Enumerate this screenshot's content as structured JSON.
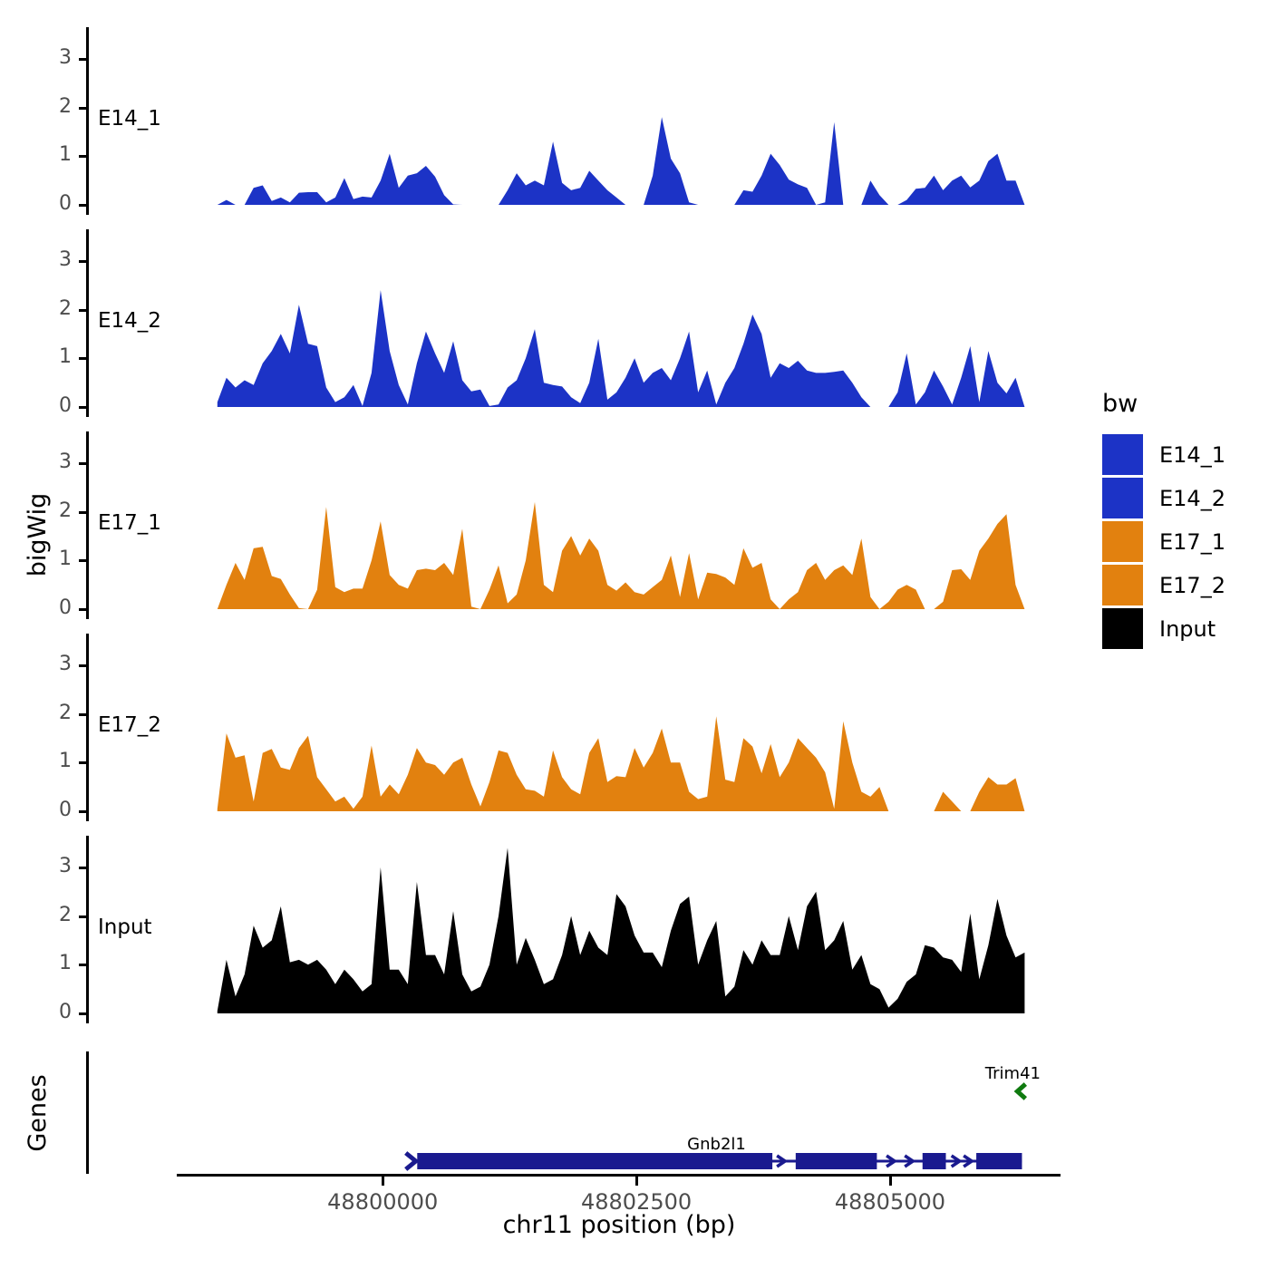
{
  "figure": {
    "ylab_left": "bigWig",
    "ylab_genes": "Genes",
    "xlab": "chr11 position (bp)"
  },
  "legend": {
    "title": "bw",
    "items": [
      {
        "label": "E14_1",
        "color": "#1c33c6"
      },
      {
        "label": "E14_2",
        "color": "#1c33c6"
      },
      {
        "label": "E17_1",
        "color": "#e2810f"
      },
      {
        "label": "E17_2",
        "color": "#e2810f"
      },
      {
        "label": "Input",
        "color": "#000000"
      }
    ]
  },
  "chart_data": {
    "type": "area",
    "title": "",
    "xlabel": "chr11 position (bp)",
    "ylabel": "bigWig",
    "xlim": [
      48797970,
      48806680
    ],
    "ylim": [
      0,
      3.65
    ],
    "yticks": [
      0,
      1,
      2,
      3
    ],
    "xticks": [
      48800000,
      48802500,
      48805000
    ],
    "xtick_labels": [
      "48800000",
      "48802500",
      "48805000"
    ],
    "x_start": 48798370,
    "x_step": 89.4,
    "tracks": [
      {
        "name": "E14_1",
        "color": "#1c33c6",
        "values": [
          0,
          0.1,
          0,
          0,
          0.35,
          0.4,
          0.08,
          0.15,
          0.05,
          0.25,
          0.26,
          0.26,
          0.05,
          0.15,
          0.55,
          0.12,
          0.17,
          0.15,
          0.5,
          1.05,
          0.35,
          0.6,
          0.65,
          0.8,
          0.58,
          0.2,
          0.01,
          0,
          0,
          0,
          0,
          0,
          0.3,
          0.65,
          0.4,
          0.5,
          0.4,
          1.3,
          0.45,
          0.3,
          0.35,
          0.7,
          0.5,
          0.3,
          0.15,
          0,
          0,
          0,
          0.6,
          1.8,
          0.95,
          0.65,
          0.05,
          0,
          0,
          0,
          0,
          0,
          0.3,
          0.27,
          0.6,
          1.05,
          0.82,
          0.52,
          0.42,
          0.35,
          0,
          0.05,
          1.7,
          0,
          0,
          0,
          0.5,
          0.2,
          0,
          0,
          0.1,
          0.33,
          0.35,
          0.6,
          0.3,
          0.5,
          0.6,
          0.36,
          0.5,
          0.9,
          1.05,
          0.5,
          0.5,
          0
        ]
      },
      {
        "name": "E14_2",
        "color": "#1c33c6",
        "values": [
          0.1,
          0.6,
          0.4,
          0.55,
          0.45,
          0.9,
          1.15,
          1.5,
          1.1,
          2.1,
          1.3,
          1.25,
          0.4,
          0.1,
          0.2,
          0.45,
          0.02,
          0.7,
          2.4,
          1.15,
          0.45,
          0.05,
          0.9,
          1.55,
          1.1,
          0.7,
          1.35,
          0.55,
          0.32,
          0.36,
          0.02,
          0.05,
          0.4,
          0.55,
          1.0,
          1.6,
          0.5,
          0.45,
          0.42,
          0.2,
          0.08,
          0.5,
          1.4,
          0.15,
          0.3,
          0.6,
          1.0,
          0.5,
          0.7,
          0.8,
          0.55,
          1.0,
          1.55,
          0.3,
          0.75,
          0.05,
          0.5,
          0.8,
          1.3,
          1.9,
          1.5,
          0.6,
          0.9,
          0.8,
          0.95,
          0.75,
          0.7,
          0.7,
          0.72,
          0.75,
          0.5,
          0.2,
          0,
          0,
          0,
          0.3,
          1.1,
          0.05,
          0.3,
          0.75,
          0.42,
          0.05,
          0.6,
          1.25,
          0.1,
          1.15,
          0.5,
          0.28,
          0.6,
          0
        ]
      },
      {
        "name": "E17_1",
        "color": "#e2810f",
        "values": [
          0,
          0.5,
          0.95,
          0.6,
          1.25,
          1.28,
          0.68,
          0.62,
          0.3,
          0.02,
          0,
          0.4,
          2.1,
          0.45,
          0.35,
          0.42,
          0.42,
          1.0,
          1.8,
          0.7,
          0.5,
          0.42,
          0.8,
          0.83,
          0.8,
          0.95,
          0.7,
          1.65,
          0.05,
          0,
          0.4,
          0.9,
          0.12,
          0.3,
          1.0,
          2.2,
          0.5,
          0.35,
          1.2,
          1.5,
          1.1,
          1.45,
          1.2,
          0.5,
          0.38,
          0.55,
          0.35,
          0.3,
          0.45,
          0.6,
          1.1,
          0.25,
          1.15,
          0.2,
          0.75,
          0.72,
          0.65,
          0.5,
          1.25,
          0.85,
          0.95,
          0.2,
          0,
          0.2,
          0.35,
          0.8,
          0.95,
          0.6,
          0.8,
          0.9,
          0.7,
          1.45,
          0.25,
          0,
          0.15,
          0.4,
          0.5,
          0.4,
          0,
          0,
          0.15,
          0.8,
          0.82,
          0.6,
          1.2,
          1.45,
          1.75,
          1.95,
          0.5,
          0
        ]
      },
      {
        "name": "E17_2",
        "color": "#e2810f",
        "values": [
          0.05,
          1.6,
          1.1,
          1.15,
          0.2,
          1.2,
          1.28,
          0.9,
          0.85,
          1.3,
          1.55,
          0.7,
          0.45,
          0.2,
          0.3,
          0.05,
          0.3,
          1.35,
          0.3,
          0.55,
          0.35,
          0.75,
          1.3,
          1.0,
          0.95,
          0.75,
          1.0,
          1.1,
          0.55,
          0.1,
          0.6,
          1.25,
          1.2,
          0.75,
          0.45,
          0.42,
          0.3,
          1.25,
          0.7,
          0.45,
          0.35,
          1.2,
          1.5,
          0.6,
          0.72,
          0.7,
          1.3,
          0.9,
          1.2,
          1.7,
          1.0,
          1.0,
          0.4,
          0.25,
          0.3,
          1.95,
          0.65,
          0.6,
          1.5,
          1.33,
          0.78,
          1.38,
          0.7,
          1.0,
          1.5,
          1.3,
          1.1,
          0.8,
          0.05,
          1.85,
          1.0,
          0.4,
          0.3,
          0.5,
          0,
          0,
          0,
          0,
          0,
          0,
          0.4,
          0.2,
          0,
          0,
          0.4,
          0.7,
          0.55,
          0.55,
          0.68,
          0
        ]
      },
      {
        "name": "Input",
        "color": "#000000",
        "values": [
          0.05,
          1.1,
          0.35,
          0.8,
          1.8,
          1.35,
          1.5,
          2.2,
          1.05,
          1.1,
          1.0,
          1.1,
          0.9,
          0.6,
          0.9,
          0.7,
          0.45,
          0.6,
          3.0,
          0.9,
          0.9,
          0.6,
          2.7,
          1.2,
          1.2,
          0.8,
          2.1,
          0.8,
          0.45,
          0.55,
          1.0,
          2.0,
          3.4,
          1.0,
          1.55,
          1.1,
          0.6,
          0.7,
          1.2,
          2.0,
          1.2,
          1.7,
          1.35,
          1.2,
          2.45,
          2.2,
          1.6,
          1.25,
          1.25,
          0.95,
          1.7,
          2.25,
          2.4,
          1.0,
          1.5,
          1.9,
          0.35,
          0.55,
          1.3,
          1.0,
          1.5,
          1.2,
          1.2,
          2.0,
          1.3,
          2.2,
          2.5,
          1.3,
          1.5,
          1.9,
          0.9,
          1.2,
          0.6,
          0.5,
          0.12,
          0.3,
          0.65,
          0.8,
          1.4,
          1.35,
          1.15,
          1.1,
          0.85,
          2.05,
          0.7,
          1.4,
          2.35,
          1.6,
          1.15,
          1.25
        ]
      }
    ],
    "genes": {
      "axis_label": "Genes",
      "items": [
        {
          "name": "Gnb2l1",
          "strand": "+",
          "color": "#1a1a8f",
          "start": 48800290,
          "end": 48806300,
          "exons": [
            [
              48800340,
              48803840
            ],
            [
              48804070,
              48804870
            ],
            [
              48805320,
              48805550
            ],
            [
              48805850,
              48806300
            ]
          ],
          "intron_arrows": [
            48803930,
            48805010,
            48805190,
            48805650,
            48805770
          ],
          "label_x": 48803290
        },
        {
          "name": "Trim41",
          "strand": "-",
          "color": "#0f7a0f",
          "arrow_x": 48806290,
          "label_x": 48806210
        }
      ]
    }
  }
}
